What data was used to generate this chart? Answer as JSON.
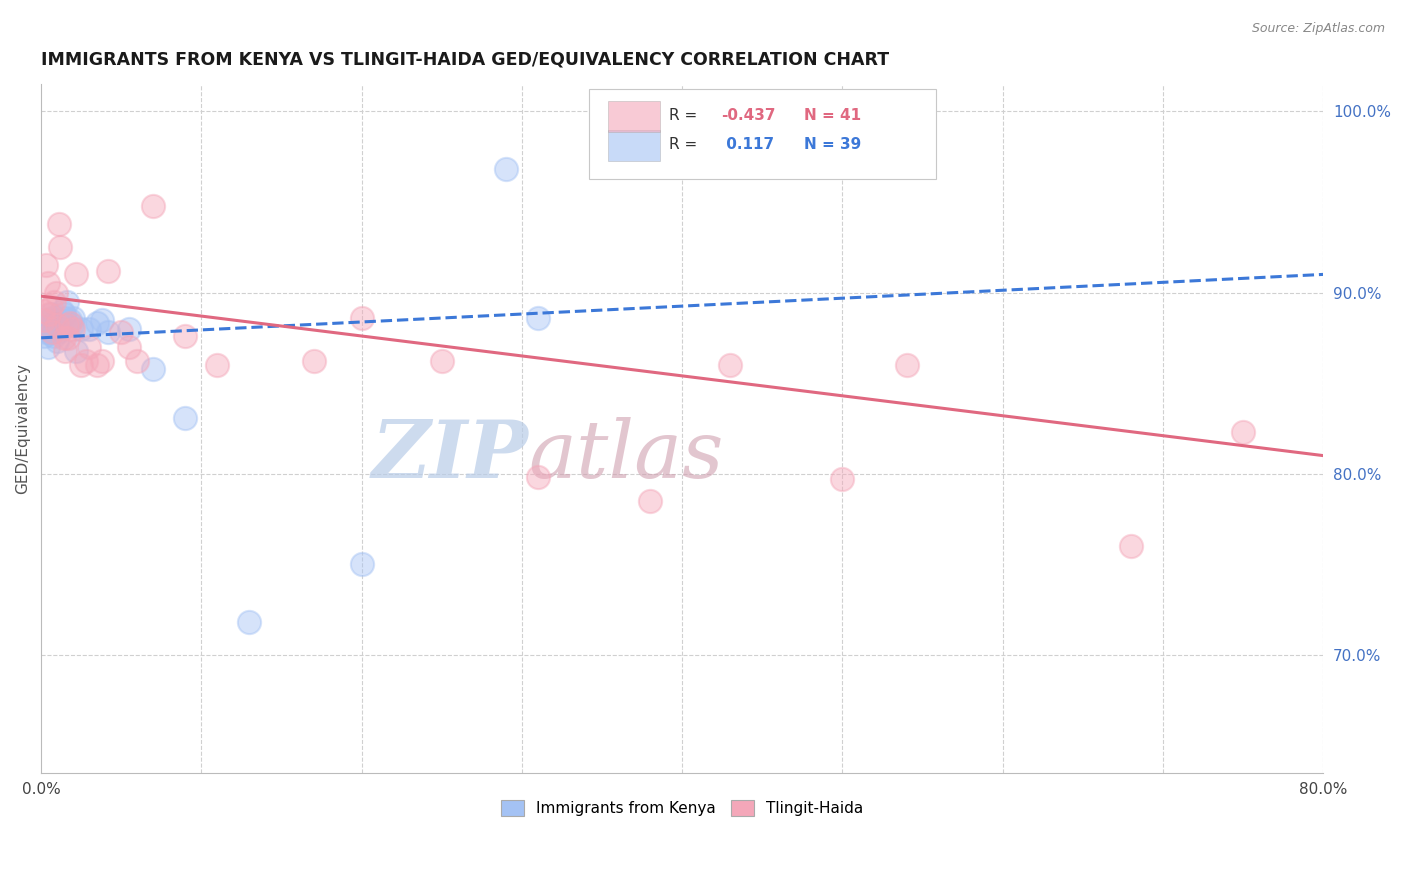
{
  "title": "IMMIGRANTS FROM KENYA VS TLINGIT-HAIDA GED/EQUIVALENCY CORRELATION CHART",
  "source": "Source: ZipAtlas.com",
  "ylabel": "GED/Equivalency",
  "legend_label_blue": "Immigrants from Kenya",
  "legend_label_pink": "Tlingit-Haida",
  "R_blue": 0.117,
  "N_blue": 39,
  "R_pink": -0.437,
  "N_pink": 41,
  "xlim": [
    0.0,
    0.8
  ],
  "ylim": [
    0.635,
    1.015
  ],
  "xticks": [
    0.0,
    0.1,
    0.2,
    0.3,
    0.4,
    0.5,
    0.6,
    0.7,
    0.8
  ],
  "xticklabels": [
    "0.0%",
    "",
    "",
    "",
    "",
    "",
    "",
    "",
    "80.0%"
  ],
  "yticks_right": [
    1.0,
    0.9,
    0.8,
    0.7
  ],
  "yticklabels_right": [
    "100.0%",
    "90.0%",
    "80.0%",
    "70.0%"
  ],
  "blue_scatter_x": [
    0.001,
    0.002,
    0.003,
    0.003,
    0.004,
    0.004,
    0.005,
    0.005,
    0.006,
    0.006,
    0.007,
    0.007,
    0.008,
    0.008,
    0.009,
    0.01,
    0.01,
    0.011,
    0.012,
    0.013,
    0.014,
    0.015,
    0.016,
    0.018,
    0.019,
    0.02,
    0.022,
    0.025,
    0.03,
    0.035,
    0.038,
    0.042,
    0.055,
    0.07,
    0.09,
    0.13,
    0.2,
    0.29,
    0.31
  ],
  "blue_scatter_y": [
    0.88,
    0.876,
    0.883,
    0.878,
    0.87,
    0.882,
    0.885,
    0.878,
    0.888,
    0.882,
    0.886,
    0.878,
    0.882,
    0.876,
    0.88,
    0.873,
    0.885,
    0.882,
    0.879,
    0.89,
    0.888,
    0.886,
    0.895,
    0.885,
    0.882,
    0.886,
    0.868,
    0.88,
    0.88,
    0.883,
    0.885,
    0.878,
    0.88,
    0.858,
    0.831,
    0.718,
    0.75,
    0.968,
    0.886
  ],
  "pink_scatter_x": [
    0.001,
    0.002,
    0.003,
    0.004,
    0.005,
    0.006,
    0.007,
    0.008,
    0.009,
    0.01,
    0.011,
    0.012,
    0.014,
    0.015,
    0.016,
    0.017,
    0.018,
    0.02,
    0.022,
    0.025,
    0.028,
    0.03,
    0.035,
    0.038,
    0.042,
    0.05,
    0.055,
    0.06,
    0.07,
    0.09,
    0.11,
    0.17,
    0.2,
    0.25,
    0.31,
    0.38,
    0.43,
    0.5,
    0.54,
    0.68,
    0.75
  ],
  "pink_scatter_y": [
    0.89,
    0.885,
    0.915,
    0.905,
    0.888,
    0.892,
    0.878,
    0.895,
    0.9,
    0.882,
    0.938,
    0.925,
    0.875,
    0.868,
    0.882,
    0.875,
    0.883,
    0.88,
    0.91,
    0.86,
    0.862,
    0.87,
    0.86,
    0.862,
    0.912,
    0.878,
    0.87,
    0.862,
    0.948,
    0.876,
    0.86,
    0.862,
    0.886,
    0.862,
    0.798,
    0.785,
    0.86,
    0.797,
    0.86,
    0.76,
    0.823
  ],
  "blue_line_x": [
    0.0,
    0.8
  ],
  "blue_line_y": [
    0.875,
    0.91
  ],
  "pink_line_x": [
    0.0,
    0.8
  ],
  "pink_line_y": [
    0.898,
    0.81
  ],
  "background_color": "#ffffff",
  "blue_color": "#a4c2f4",
  "pink_color": "#f4a7b9",
  "blue_line_color": "#3c78d8",
  "pink_line_color": "#e06880",
  "title_color": "#1a1a1a",
  "grid_color": "#d0d0d0",
  "right_tick_color": "#4472c4",
  "watermark_text1": "ZIP",
  "watermark_text2": "atlas",
  "watermark_color": "#c8d8f0"
}
